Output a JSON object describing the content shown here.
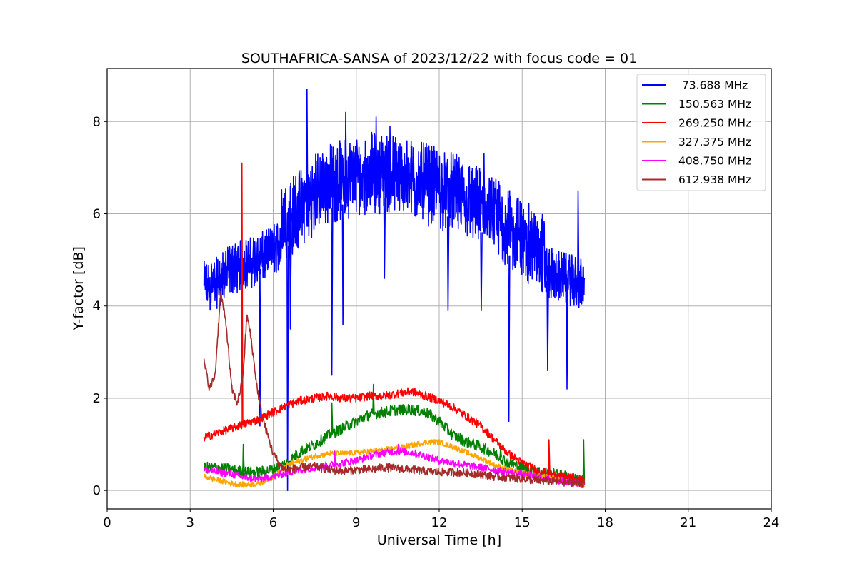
{
  "chart_data": {
    "type": "line",
    "title": "SOUTHAFRICA-SANSA of 2023/12/22 with focus code = 01",
    "xlabel": "Universal Time [h]",
    "ylabel": "Y-factor [dB]",
    "xlim": [
      0,
      24
    ],
    "ylim": [
      -0.4,
      9.15
    ],
    "xticks": [
      0,
      3,
      6,
      9,
      12,
      15,
      18,
      21,
      24
    ],
    "yticks": [
      0,
      2,
      4,
      6,
      8
    ],
    "grid": true,
    "legend_position": "top-right",
    "series": [
      {
        "name": " 73.688 MHz",
        "color": "#0000ff",
        "base_points": [
          [
            3.5,
            4.2
          ],
          [
            4.0,
            4.3
          ],
          [
            4.5,
            4.6
          ],
          [
            5.0,
            4.7
          ],
          [
            5.5,
            4.8
          ],
          [
            6.0,
            5.0
          ],
          [
            6.5,
            5.3
          ],
          [
            7.0,
            5.6
          ],
          [
            7.5,
            5.9
          ],
          [
            8.0,
            6.1
          ],
          [
            8.5,
            6.2
          ],
          [
            9.0,
            6.3
          ],
          [
            9.5,
            6.35
          ],
          [
            10.0,
            6.35
          ],
          [
            10.5,
            6.3
          ],
          [
            11.0,
            6.2
          ],
          [
            11.5,
            6.1
          ],
          [
            12.0,
            6.0
          ],
          [
            12.5,
            5.9
          ],
          [
            13.0,
            5.75
          ],
          [
            13.5,
            5.6
          ],
          [
            14.0,
            5.4
          ],
          [
            14.5,
            5.1
          ],
          [
            15.0,
            4.9
          ],
          [
            15.5,
            4.7
          ],
          [
            16.0,
            4.5
          ],
          [
            16.5,
            4.4
          ],
          [
            17.0,
            4.3
          ],
          [
            17.25,
            4.2
          ]
        ],
        "peaks": [
          [
            7.2,
            8.7
          ],
          [
            8.6,
            8.2
          ],
          [
            9.7,
            8.1
          ],
          [
            10.2,
            7.9
          ],
          [
            6.6,
            6.6
          ],
          [
            13.6,
            7.3
          ],
          [
            17.0,
            6.5
          ]
        ],
        "dips": [
          [
            6.5,
            0.0
          ],
          [
            5.5,
            1.4
          ],
          [
            8.1,
            2.5
          ],
          [
            8.5,
            3.6
          ],
          [
            14.5,
            1.5
          ],
          [
            16.6,
            2.2
          ],
          [
            15.9,
            2.6
          ],
          [
            10.0,
            4.6
          ],
          [
            12.3,
            3.9
          ],
          [
            13.5,
            3.9
          ],
          [
            6.6,
            3.5
          ]
        ]
      },
      {
        "name": "150.563 MHz",
        "color": "#008000",
        "base_points": [
          [
            3.5,
            0.5
          ],
          [
            4.0,
            0.5
          ],
          [
            4.5,
            0.45
          ],
          [
            5.0,
            0.4
          ],
          [
            5.5,
            0.4
          ],
          [
            6.0,
            0.45
          ],
          [
            6.5,
            0.6
          ],
          [
            7.0,
            0.85
          ],
          [
            7.5,
            1.0
          ],
          [
            8.0,
            1.2
          ],
          [
            8.5,
            1.35
          ],
          [
            9.0,
            1.5
          ],
          [
            9.5,
            1.65
          ],
          [
            10.0,
            1.7
          ],
          [
            10.5,
            1.75
          ],
          [
            11.0,
            1.75
          ],
          [
            11.5,
            1.7
          ],
          [
            12.0,
            1.5
          ],
          [
            12.5,
            1.2
          ],
          [
            13.0,
            1.05
          ],
          [
            13.5,
            0.95
          ],
          [
            14.0,
            0.8
          ],
          [
            14.5,
            0.6
          ],
          [
            15.0,
            0.5
          ],
          [
            15.5,
            0.42
          ],
          [
            16.0,
            0.38
          ],
          [
            16.5,
            0.32
          ],
          [
            17.0,
            0.25
          ],
          [
            17.25,
            0.2
          ]
        ],
        "peaks": [
          [
            4.9,
            1.0
          ],
          [
            9.6,
            2.3
          ],
          [
            8.1,
            1.9
          ],
          [
            17.2,
            1.1
          ],
          [
            14.2,
            0.95
          ]
        ],
        "dips": []
      },
      {
        "name": "269.250 MHz",
        "color": "#ff0000",
        "base_points": [
          [
            3.5,
            1.15
          ],
          [
            4.0,
            1.25
          ],
          [
            4.5,
            1.35
          ],
          [
            5.0,
            1.45
          ],
          [
            5.5,
            1.55
          ],
          [
            6.0,
            1.7
          ],
          [
            6.5,
            1.85
          ],
          [
            7.0,
            1.95
          ],
          [
            7.5,
            2.0
          ],
          [
            8.0,
            2.05
          ],
          [
            8.5,
            2.0
          ],
          [
            9.0,
            2.0
          ],
          [
            9.5,
            2.05
          ],
          [
            10.0,
            2.05
          ],
          [
            10.5,
            2.1
          ],
          [
            11.0,
            2.15
          ],
          [
            11.5,
            2.05
          ],
          [
            12.0,
            1.95
          ],
          [
            12.5,
            1.8
          ],
          [
            13.0,
            1.6
          ],
          [
            13.5,
            1.4
          ],
          [
            14.0,
            1.1
          ],
          [
            14.5,
            0.8
          ],
          [
            15.0,
            0.6
          ],
          [
            15.5,
            0.45
          ],
          [
            16.0,
            0.35
          ],
          [
            16.5,
            0.3
          ],
          [
            17.0,
            0.25
          ],
          [
            17.25,
            0.2
          ]
        ],
        "peaks": [
          [
            4.85,
            7.1
          ],
          [
            15.95,
            1.1
          ]
        ],
        "dips": []
      },
      {
        "name": "327.375 MHz",
        "color": "#ffa500",
        "base_points": [
          [
            3.5,
            0.3
          ],
          [
            4.0,
            0.22
          ],
          [
            4.5,
            0.15
          ],
          [
            5.0,
            0.12
          ],
          [
            5.5,
            0.15
          ],
          [
            6.0,
            0.3
          ],
          [
            6.5,
            0.55
          ],
          [
            7.0,
            0.65
          ],
          [
            7.5,
            0.75
          ],
          [
            8.0,
            0.8
          ],
          [
            8.5,
            0.8
          ],
          [
            9.0,
            0.82
          ],
          [
            9.5,
            0.85
          ],
          [
            10.0,
            0.88
          ],
          [
            10.5,
            0.92
          ],
          [
            11.0,
            0.98
          ],
          [
            11.5,
            1.05
          ],
          [
            12.0,
            1.05
          ],
          [
            12.5,
            0.95
          ],
          [
            13.0,
            0.82
          ],
          [
            13.5,
            0.7
          ],
          [
            14.0,
            0.55
          ],
          [
            14.5,
            0.45
          ],
          [
            15.0,
            0.38
          ],
          [
            15.5,
            0.32
          ],
          [
            16.0,
            0.28
          ],
          [
            16.5,
            0.22
          ],
          [
            17.0,
            0.15
          ],
          [
            17.25,
            0.1
          ]
        ],
        "peaks": [],
        "dips": []
      },
      {
        "name": "408.750 MHz",
        "color": "#ff00ff",
        "base_points": [
          [
            3.5,
            0.45
          ],
          [
            4.0,
            0.4
          ],
          [
            4.5,
            0.35
          ],
          [
            5.0,
            0.28
          ],
          [
            5.5,
            0.25
          ],
          [
            6.0,
            0.3
          ],
          [
            6.5,
            0.38
          ],
          [
            7.0,
            0.45
          ],
          [
            7.5,
            0.5
          ],
          [
            8.0,
            0.55
          ],
          [
            8.5,
            0.6
          ],
          [
            9.0,
            0.65
          ],
          [
            9.5,
            0.75
          ],
          [
            10.0,
            0.82
          ],
          [
            10.5,
            0.85
          ],
          [
            11.0,
            0.82
          ],
          [
            11.5,
            0.75
          ],
          [
            12.0,
            0.65
          ],
          [
            12.5,
            0.6
          ],
          [
            13.0,
            0.55
          ],
          [
            13.5,
            0.5
          ],
          [
            14.0,
            0.45
          ],
          [
            14.5,
            0.4
          ],
          [
            15.0,
            0.35
          ],
          [
            15.5,
            0.3
          ],
          [
            16.0,
            0.25
          ],
          [
            16.5,
            0.2
          ],
          [
            17.0,
            0.15
          ],
          [
            17.25,
            0.12
          ]
        ],
        "peaks": [
          [
            8.2,
            0.85
          ],
          [
            10.5,
            1.0
          ]
        ],
        "dips": []
      },
      {
        "name": "612.938 MHz",
        "color": "#a52a2a",
        "base_points": [
          [
            3.5,
            2.8
          ],
          [
            3.7,
            2.2
          ],
          [
            3.9,
            2.5
          ],
          [
            4.1,
            4.3
          ],
          [
            4.3,
            3.6
          ],
          [
            4.5,
            2.2
          ],
          [
            4.7,
            1.9
          ],
          [
            4.9,
            2.4
          ],
          [
            5.05,
            3.8
          ],
          [
            5.2,
            3.3
          ],
          [
            5.4,
            2.3
          ],
          [
            5.6,
            1.6
          ],
          [
            5.8,
            1.2
          ],
          [
            6.0,
            0.8
          ],
          [
            6.3,
            0.5
          ],
          [
            6.5,
            0.45
          ],
          [
            7.0,
            0.5
          ],
          [
            7.5,
            0.52
          ],
          [
            8.0,
            0.45
          ],
          [
            8.5,
            0.42
          ],
          [
            9.0,
            0.45
          ],
          [
            9.5,
            0.45
          ],
          [
            10.0,
            0.5
          ],
          [
            10.5,
            0.48
          ],
          [
            11.0,
            0.45
          ],
          [
            11.5,
            0.42
          ],
          [
            12.0,
            0.4
          ],
          [
            12.5,
            0.4
          ],
          [
            13.0,
            0.38
          ],
          [
            13.5,
            0.35
          ],
          [
            14.0,
            0.3
          ],
          [
            14.5,
            0.28
          ],
          [
            15.0,
            0.25
          ],
          [
            15.5,
            0.22
          ],
          [
            16.0,
            0.2
          ],
          [
            16.5,
            0.18
          ],
          [
            17.0,
            0.17
          ],
          [
            17.25,
            0.17
          ]
        ],
        "peaks": [],
        "dips": []
      }
    ]
  }
}
